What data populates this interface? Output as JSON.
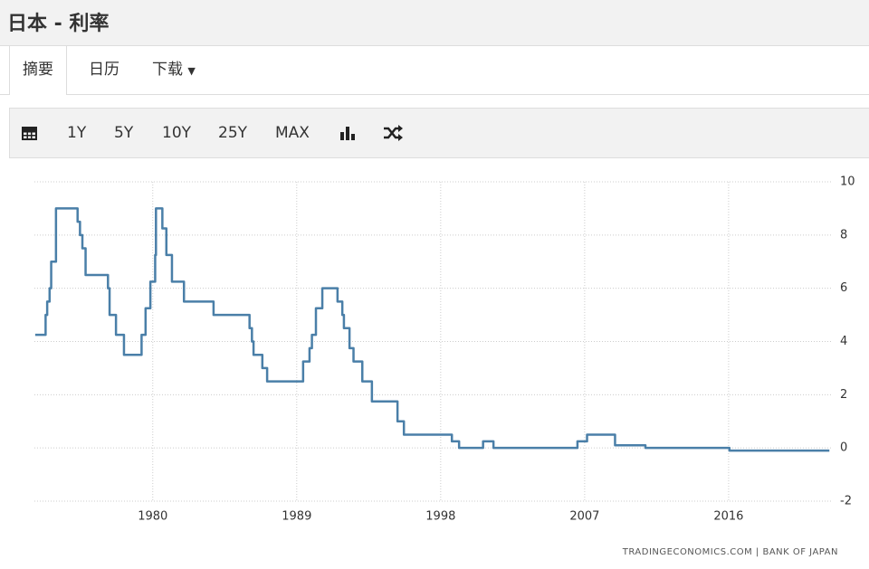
{
  "header": {
    "title": "日本 - 利率"
  },
  "tabs": [
    "摘要",
    "日历",
    "下载"
  ],
  "toolbar": {
    "ranges": [
      "1Y",
      "5Y",
      "10Y",
      "25Y",
      "MAX"
    ]
  },
  "chart_data": {
    "type": "line",
    "step": true,
    "color": "#4a7fa8",
    "source": "TRADINGECONOMICS.COM | BANK OF JAPAN",
    "x": [
      1972.65,
      1973.3,
      1973.4,
      1973.55,
      1973.65,
      1973.95,
      1975.3,
      1975.45,
      1975.6,
      1975.8,
      1977.2,
      1977.3,
      1977.7,
      1978.2,
      1979.3,
      1979.55,
      1979.85,
      1980.15,
      1980.2,
      1980.6,
      1980.85,
      1981.2,
      1981.95,
      1983.8,
      1986.05,
      1986.2,
      1986.3,
      1986.85,
      1987.15,
      1989.4,
      1989.8,
      1989.95,
      1990.2,
      1990.6,
      1991.55,
      1991.85,
      1991.95,
      1992.3,
      1992.55,
      1993.1,
      1993.7,
      1995.3,
      1995.7,
      1998.7,
      1999.15,
      2000.65,
      2001.3,
      2006.55,
      2007.15,
      2008.9,
      2010.8,
      2016.05,
      2022.3
    ],
    "series": [
      {
        "name": "Interest Rate",
        "color": "#4a7fa8",
        "values": [
          4.25,
          5,
          5.5,
          6,
          7,
          9,
          8.5,
          8,
          7.5,
          6.5,
          6,
          5,
          4.25,
          3.5,
          4.25,
          5.25,
          6.25,
          7.25,
          9,
          8.25,
          7.25,
          6.25,
          5.5,
          5,
          4.5,
          4,
          3.5,
          3,
          2.5,
          3.25,
          3.75,
          4.25,
          5.25,
          6,
          5.5,
          5,
          4.5,
          3.75,
          3.25,
          2.5,
          1.75,
          1,
          0.5,
          0.25,
          0,
          0.25,
          0,
          0.25,
          0.5,
          0.1,
          0,
          -0.1,
          -0.1
        ]
      }
    ],
    "xlim": [
      1972.6,
      2022.4
    ],
    "xticks": [
      1980,
      1989,
      1998,
      2007,
      2016
    ],
    "ylim": [
      -2,
      10
    ],
    "yticks": [
      -2,
      0,
      2,
      4,
      6,
      8,
      10
    ],
    "grid": true
  }
}
